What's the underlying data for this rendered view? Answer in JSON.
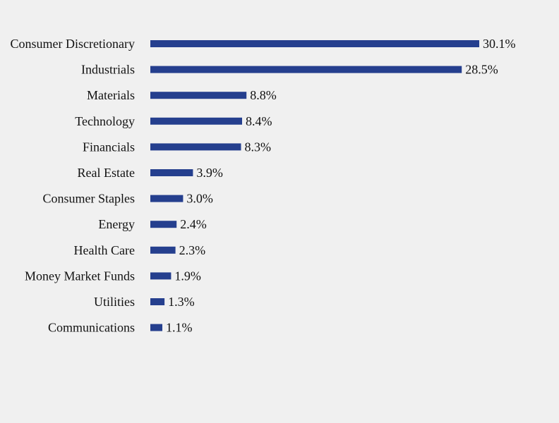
{
  "background_color": "#f0f0f0",
  "chart_data": {
    "type": "bar",
    "orientation": "horizontal",
    "title": "",
    "xlabel": "",
    "ylabel": "",
    "grid": false,
    "legend": "none",
    "xlim": [
      0,
      30.1
    ],
    "bar_color": "#253f8e",
    "value_suffix": "%",
    "categories": [
      "Consumer Discretionary",
      "Industrials",
      "Materials",
      "Technology",
      "Financials",
      "Real Estate",
      "Consumer Staples",
      "Energy",
      "Health Care",
      "Money Market Funds",
      "Utilities",
      "Communications"
    ],
    "values": [
      30.1,
      28.5,
      8.8,
      8.4,
      8.3,
      3.9,
      3.0,
      2.4,
      2.3,
      1.9,
      1.3,
      1.1
    ],
    "value_labels": [
      "30.1%",
      "28.5%",
      "8.8%",
      "8.4%",
      "8.3%",
      "3.9%",
      "3.0%",
      "2.4%",
      "2.3%",
      "1.9%",
      "1.3%",
      "1.1%"
    ]
  }
}
